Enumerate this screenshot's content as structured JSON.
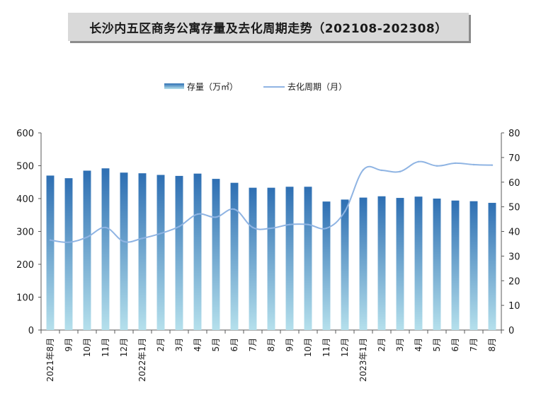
{
  "title": "长沙内五区商务公寓存量及去化周期走势（202108-202308）",
  "legend": {
    "bar_label": "存量（万㎡）",
    "line_label": "去化周期（月）"
  },
  "colors": {
    "bar_top": "#2e6fb3",
    "bar_bottom": "#aedbe8",
    "line": "#8fb4e3",
    "axis": "#595959"
  },
  "chart_data": {
    "type": "bar+line",
    "categories": [
      "2021年8月",
      "9月",
      "10月",
      "11月",
      "12月",
      "2022年1月",
      "2月",
      "3月",
      "4月",
      "5月",
      "6月",
      "7月",
      "8月",
      "9月",
      "10月",
      "11月",
      "12月",
      "2023年1月",
      "2月",
      "3月",
      "4月",
      "5月",
      "6月",
      "7月",
      "8月"
    ],
    "series": [
      {
        "name": "存量（万㎡）",
        "type": "bar",
        "axis": "left",
        "values": [
          470,
          462,
          485,
          492,
          479,
          477,
          472,
          469,
          476,
          460,
          448,
          433,
          433,
          436,
          436,
          391,
          397,
          403,
          407,
          402,
          406,
          400,
          394,
          392,
          387
        ]
      },
      {
        "name": "去化周期（月）",
        "type": "line",
        "axis": "right",
        "values": [
          36.5,
          35.6,
          37.7,
          41.6,
          35.9,
          37.2,
          39.2,
          42.0,
          47.0,
          45.8,
          49.0,
          41.6,
          41.3,
          42.8,
          42.8,
          41.3,
          48.1,
          65.0,
          64.8,
          64.3,
          68.3,
          66.6,
          67.7,
          67.1,
          66.9
        ]
      }
    ],
    "yleft": {
      "lim": [
        0,
        600
      ],
      "ticks": [
        0,
        100,
        200,
        300,
        400,
        500,
        600
      ]
    },
    "yright": {
      "lim": [
        0,
        80
      ],
      "ticks": [
        0,
        10,
        20,
        30,
        40,
        50,
        60,
        70,
        80
      ]
    },
    "legend_position": "top-center",
    "grid": false
  }
}
